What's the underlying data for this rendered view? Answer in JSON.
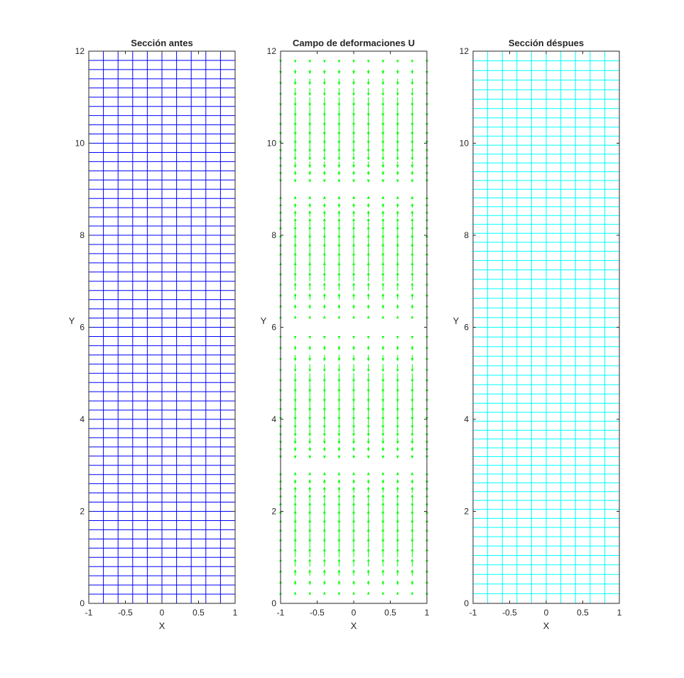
{
  "chart_data": [
    {
      "type": "mesh",
      "title": "Sección antes",
      "xlabel": "X",
      "ylabel": "Y",
      "xlim": [
        -1,
        1
      ],
      "ylim": [
        0,
        12
      ],
      "xticks": [
        "-1",
        "-0.5",
        "0",
        "0.5",
        "1"
      ],
      "yticks": [
        "0",
        "2",
        "4",
        "6",
        "8",
        "10",
        "12"
      ],
      "mesh_color": "#0000ff",
      "x_lines": [
        -1,
        -0.8,
        -0.6,
        -0.4,
        -0.2,
        0,
        0.2,
        0.4,
        0.6,
        0.8,
        1
      ],
      "y_line_count": 61,
      "y_range": [
        0,
        12
      ]
    },
    {
      "type": "quiver",
      "title": "Campo de deformaciones U",
      "xlabel": "X",
      "ylabel": "Y",
      "xlim": [
        -1,
        1
      ],
      "ylim": [
        0,
        12
      ],
      "xticks": [
        "-1",
        "-0.5",
        "0",
        "0.5",
        "1"
      ],
      "yticks": [
        "0",
        "2",
        "4",
        "6",
        "8",
        "10",
        "12"
      ],
      "arrow_color": "#00ff00",
      "x_columns": [
        -1,
        -0.8,
        -0.6,
        -0.4,
        -0.2,
        0,
        0.2,
        0.4,
        0.6,
        0.8,
        1
      ],
      "row_spacing": 0.2,
      "u": 0,
      "v_pattern": "sin",
      "v_period": 6,
      "v_amplitude": 0.22
    },
    {
      "type": "mesh",
      "title": "Sección déspues",
      "xlabel": "X",
      "ylabel": "Y",
      "xlim": [
        -1,
        1
      ],
      "ylim": [
        0,
        12
      ],
      "xticks": [
        "-1",
        "-0.5",
        "0",
        "0.5",
        "1"
      ],
      "yticks": [
        "0",
        "2",
        "4",
        "6",
        "8",
        "10",
        "12"
      ],
      "mesh_color": "#00ffff",
      "x_lines": [
        -1,
        -0.8,
        -0.6,
        -0.4,
        -0.2,
        0,
        0.2,
        0.4,
        0.6,
        0.8,
        1
      ],
      "y_line_count": 61,
      "y_range": [
        0,
        12
      ],
      "deformation_amplitude": 0.05,
      "deformation_period": 6
    }
  ]
}
